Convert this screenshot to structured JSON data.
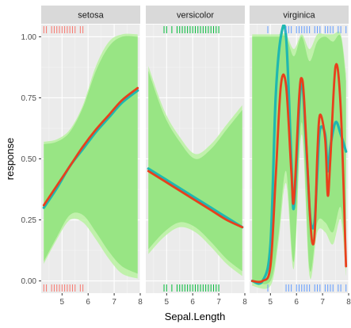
{
  "chart_data": {
    "type": "line",
    "xlabel": "Sepal.Length",
    "ylabel": "response",
    "xlim": [
      4.2,
      8.0
    ],
    "ylim": [
      -0.05,
      1.05
    ],
    "x_ticks": [
      5,
      6,
      7,
      8
    ],
    "y_ticks": [
      0.0,
      0.25,
      0.5,
      0.75,
      1.0
    ],
    "y_tick_labels": [
      "0.00",
      "0.25",
      "0.50",
      "0.75",
      "1.00"
    ],
    "grid": true,
    "legend": "none",
    "colors": {
      "panel_bg": "#ebebeb",
      "strip_bg": "#d9d9d9",
      "band_outer": "#b9f2a0",
      "band_inner": "#94e37f",
      "line_teal": "#1fb8b0",
      "line_red": "#e8401c",
      "rug_setosa": "#f8766d",
      "rug_versicolor": "#00ba38",
      "rug_virginica": "#619cff"
    },
    "panels": [
      {
        "name": "setosa",
        "rug_x": [
          4.3,
          4.4,
          4.6,
          4.7,
          4.8,
          4.9,
          5.0,
          5.1,
          5.2,
          5.3,
          5.4,
          5.5,
          5.7,
          5.8
        ],
        "series": [
          {
            "color": "teal",
            "x": [
              4.3,
              4.8,
              5.3,
              5.8,
              6.3,
              6.8,
              7.3,
              7.9
            ],
            "y": [
              0.3,
              0.38,
              0.47,
              0.54,
              0.61,
              0.67,
              0.73,
              0.78
            ]
          },
          {
            "color": "red",
            "x": [
              4.3,
              4.8,
              5.3,
              5.8,
              6.3,
              6.8,
              7.3,
              7.9
            ],
            "y": [
              0.31,
              0.39,
              0.47,
              0.55,
              0.62,
              0.68,
              0.74,
              0.79
            ]
          }
        ],
        "band_outer": {
          "x": [
            4.3,
            4.8,
            5.3,
            5.8,
            6.3,
            6.8,
            7.3,
            7.9
          ],
          "upper": [
            0.57,
            0.58,
            0.62,
            0.72,
            0.88,
            0.98,
            1.01,
            1.01
          ],
          "lower": [
            0.07,
            0.17,
            0.25,
            0.24,
            0.17,
            0.09,
            0.03,
            0.01
          ]
        },
        "band_inner": {
          "x": [
            4.3,
            4.8,
            5.3,
            5.8,
            6.3,
            6.8,
            7.3,
            7.9
          ],
          "upper": [
            0.56,
            0.57,
            0.61,
            0.71,
            0.86,
            0.96,
            1.0,
            1.0
          ],
          "lower": [
            0.08,
            0.18,
            0.27,
            0.27,
            0.2,
            0.12,
            0.06,
            0.03
          ]
        }
      },
      {
        "name": "versicolor",
        "rug_x": [
          4.9,
          5.0,
          5.2,
          5.4,
          5.5,
          5.6,
          5.7,
          5.8,
          5.9,
          6.0,
          6.1,
          6.2,
          6.3,
          6.4,
          6.5,
          6.6,
          6.7,
          6.8,
          6.9,
          7.0
        ],
        "series": [
          {
            "color": "teal",
            "x": [
              4.3,
              4.9,
              5.5,
              6.1,
              6.7,
              7.3,
              7.9
            ],
            "y": [
              0.46,
              0.42,
              0.38,
              0.34,
              0.3,
              0.26,
              0.22
            ]
          },
          {
            "color": "red",
            "x": [
              4.3,
              4.9,
              5.5,
              6.1,
              6.7,
              7.3,
              7.9
            ],
            "y": [
              0.45,
              0.41,
              0.37,
              0.33,
              0.29,
              0.25,
              0.22
            ]
          }
        ],
        "band_outer": {
          "x": [
            4.3,
            4.9,
            5.5,
            6.1,
            6.7,
            7.3,
            7.9
          ],
          "upper": [
            0.88,
            0.7,
            0.59,
            0.52,
            0.56,
            0.64,
            0.72
          ],
          "lower": [
            0.11,
            0.18,
            0.22,
            0.2,
            0.14,
            0.07,
            0.02
          ]
        },
        "band_inner": {
          "x": [
            4.3,
            4.9,
            5.5,
            6.1,
            6.7,
            7.3,
            7.9
          ],
          "upper": [
            0.86,
            0.68,
            0.57,
            0.5,
            0.54,
            0.62,
            0.7
          ],
          "lower": [
            0.13,
            0.2,
            0.24,
            0.22,
            0.16,
            0.09,
            0.04
          ]
        }
      },
      {
        "name": "virginica",
        "rug_x": [
          4.9,
          5.6,
          5.7,
          5.8,
          6.0,
          6.1,
          6.2,
          6.3,
          6.4,
          6.5,
          6.7,
          6.8,
          6.9,
          7.1,
          7.2,
          7.3,
          7.4,
          7.6,
          7.7,
          7.9
        ],
        "series": [
          {
            "color": "teal",
            "x": [
              4.3,
              4.7,
              5.0,
              5.2,
              5.4,
              5.6,
              5.8,
              5.9,
              6.1,
              6.2,
              6.3,
              6.5,
              6.6,
              6.7,
              6.8,
              6.9,
              7.1,
              7.2,
              7.3,
              7.5,
              7.7,
              7.9
            ],
            "y": [
              0.0,
              0.0,
              0.15,
              0.75,
              1.0,
              1.0,
              0.5,
              0.3,
              0.7,
              0.82,
              0.7,
              0.3,
              0.22,
              0.25,
              0.45,
              0.62,
              0.6,
              0.45,
              0.55,
              0.65,
              0.6,
              0.53
            ]
          },
          {
            "color": "red",
            "x": [
              4.3,
              4.7,
              5.0,
              5.2,
              5.4,
              5.6,
              5.8,
              5.9,
              6.1,
              6.2,
              6.3,
              6.5,
              6.6,
              6.7,
              6.8,
              6.9,
              7.1,
              7.2,
              7.3,
              7.5,
              7.7,
              7.9
            ],
            "y": [
              0.0,
              0.0,
              0.06,
              0.42,
              0.8,
              0.8,
              0.45,
              0.33,
              0.75,
              0.83,
              0.73,
              0.3,
              0.16,
              0.2,
              0.52,
              0.68,
              0.58,
              0.35,
              0.5,
              0.88,
              0.7,
              0.06
            ]
          }
        ],
        "band_outer": {
          "x": [
            4.3,
            5.0,
            5.3,
            5.6,
            5.9,
            6.2,
            6.5,
            6.8,
            7.1,
            7.4,
            7.7,
            7.9
          ],
          "upper": [
            1.01,
            1.01,
            1.01,
            1.01,
            0.95,
            1.01,
            0.95,
            1.01,
            1.01,
            1.01,
            1.01,
            0.85
          ],
          "lower": [
            -0.02,
            -0.02,
            0.15,
            0.4,
            0.05,
            0.6,
            0.02,
            0.2,
            0.2,
            0.15,
            0.25,
            0.02
          ]
        },
        "band_inner": {
          "x": [
            4.3,
            5.0,
            5.3,
            5.6,
            5.9,
            6.2,
            6.5,
            6.8,
            7.1,
            7.4,
            7.7,
            7.9
          ],
          "upper": [
            1.0,
            1.0,
            1.0,
            1.0,
            0.92,
            1.0,
            0.9,
            0.98,
            1.0,
            0.98,
            1.0,
            0.82
          ],
          "lower": [
            0.0,
            0.0,
            0.18,
            0.45,
            0.08,
            0.65,
            0.05,
            0.24,
            0.24,
            0.2,
            0.3,
            0.05
          ]
        }
      }
    ]
  }
}
